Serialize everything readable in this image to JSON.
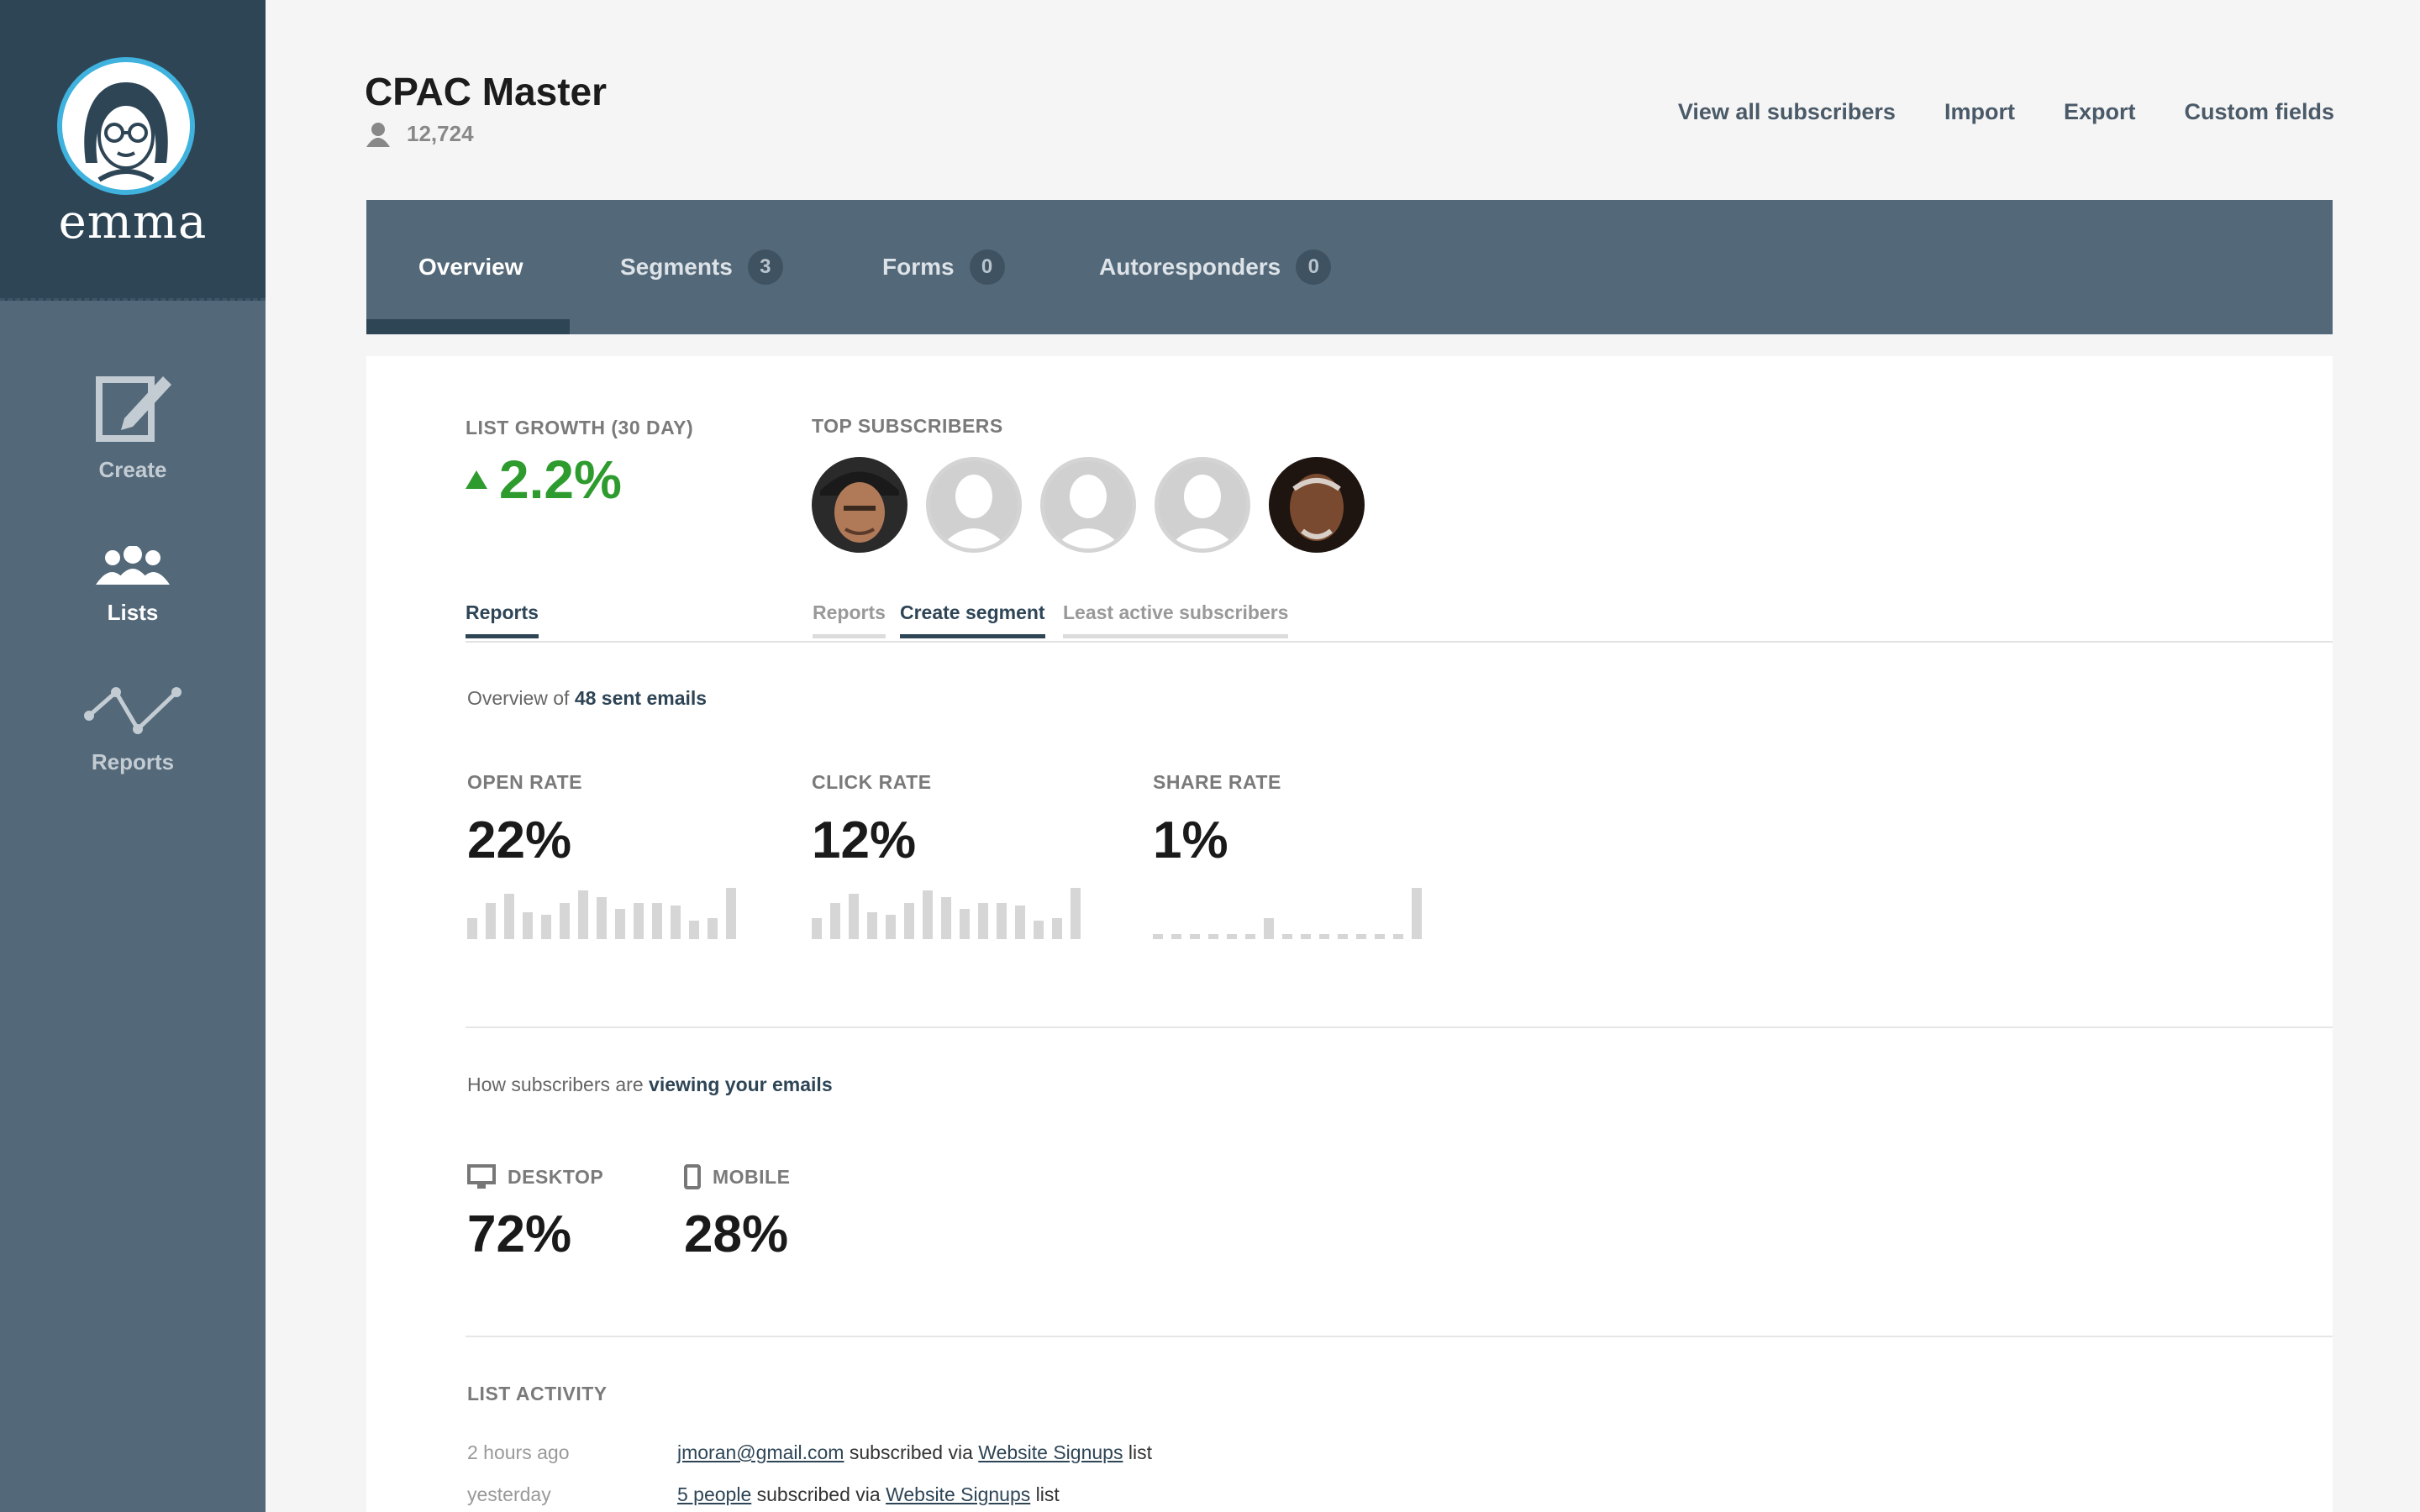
{
  "brand": {
    "logo_text": "emma",
    "accent": "#3fb3de",
    "sidebar_bg": "#536878",
    "growth_color": "#2e9b2e"
  },
  "sidebar": {
    "items": [
      {
        "label": "Create",
        "icon": "edit-icon"
      },
      {
        "label": "Lists",
        "icon": "people-icon"
      },
      {
        "label": "Reports",
        "icon": "line-graph-icon"
      }
    ]
  },
  "header": {
    "title": "CPAC Master",
    "subscriber_count": "12,724",
    "links": [
      "View all subscribers",
      "Import",
      "Export",
      "Custom fields"
    ]
  },
  "tabs": [
    {
      "label": "Overview",
      "badge": ""
    },
    {
      "label": "Segments",
      "badge": "3"
    },
    {
      "label": "Forms",
      "badge": "0"
    },
    {
      "label": "Autoresponders",
      "badge": "0"
    }
  ],
  "growth": {
    "label": "LIST GROWTH (30 DAY)",
    "value": "2.2%"
  },
  "top_subscribers": {
    "label": "TOP SUBSCRIBERS"
  },
  "subtabs": {
    "left": "Reports",
    "right": [
      "Reports",
      "Create segment",
      "Least active subscribers"
    ]
  },
  "overview": {
    "prefix": "Overview of ",
    "link": "48 sent emails"
  },
  "metrics": [
    {
      "label": "OPEN RATE",
      "value": "22%",
      "bars": [
        0.35,
        0.6,
        0.75,
        0.45,
        0.4,
        0.6,
        0.8,
        0.7,
        0.5,
        0.6,
        0.6,
        0.55,
        0.3,
        0.35,
        0.85
      ]
    },
    {
      "label": "CLICK RATE",
      "value": "12%",
      "bars": [
        0.35,
        0.6,
        0.75,
        0.45,
        0.4,
        0.6,
        0.8,
        0.7,
        0.5,
        0.6,
        0.6,
        0.55,
        0.3,
        0.35,
        0.85
      ]
    },
    {
      "label": "SHARE RATE",
      "value": "1%",
      "bars": [
        0.08,
        0.08,
        0.08,
        0.08,
        0.08,
        0.08,
        0.35,
        0.08,
        0.08,
        0.08,
        0.08,
        0.08,
        0.08,
        0.08,
        0.85
      ]
    }
  ],
  "viewing": {
    "prefix": "How subscribers are ",
    "link": "viewing your emails"
  },
  "devices": [
    {
      "label": "DESKTOP",
      "value": "72%",
      "icon": "monitor-icon"
    },
    {
      "label": "MOBILE",
      "value": "28%",
      "icon": "phone-icon"
    }
  ],
  "activity": {
    "label": "LIST ACTIVITY",
    "rows": [
      {
        "time": "2 hours ago",
        "who": "jmoran@gmail.com",
        "mid": " subscribed via ",
        "list": "Website Signups",
        "end": " list"
      },
      {
        "time": "yesterday",
        "who": "5 people",
        "mid": " subscribed via ",
        "list": "Website Signups",
        "end": " list"
      }
    ]
  }
}
